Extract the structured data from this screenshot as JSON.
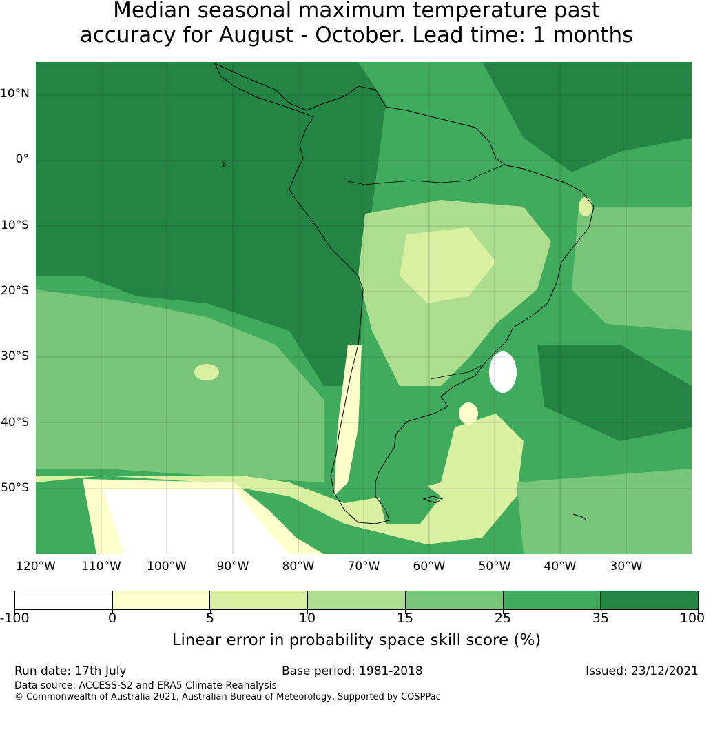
{
  "title": {
    "line1": "Median seasonal maximum temperature past",
    "line2": "accuracy for August - October. Lead time: 1 months"
  },
  "map": {
    "lat_ticks": [
      "10°N",
      "0°",
      "10°S",
      "20°S",
      "30°S",
      "40°S",
      "50°S"
    ],
    "lon_ticks": [
      "120°W",
      "110°W",
      "100°W",
      "90°W",
      "80°W",
      "70°W",
      "60°W",
      "50°W",
      "40°W",
      "30°W"
    ],
    "extent": {
      "lon_min": -120,
      "lon_max": -20,
      "lat_min": -60,
      "lat_max": 15
    }
  },
  "colorbar": {
    "colors": [
      "#ffffff",
      "#ffffcc",
      "#d9f0a3",
      "#addd8e",
      "#78c679",
      "#41ab5d",
      "#238443"
    ],
    "tick_labels": [
      "-100",
      "0",
      "5",
      "10",
      "15",
      "25",
      "35",
      "100"
    ],
    "label": "Linear error in probability space skill score (%)"
  },
  "footer": {
    "run_date": "Run date: 17th July",
    "base_period": "Base period: 1981-2018",
    "issued": "Issued: 23/12/2021",
    "data_source": "Data source: ACCESS-S2 and ERA5 Climate Reanalysis",
    "copyright": "© Commonwealth of Australia 2021, Australian Bureau of Meteorology, Supported by COSPPac"
  }
}
